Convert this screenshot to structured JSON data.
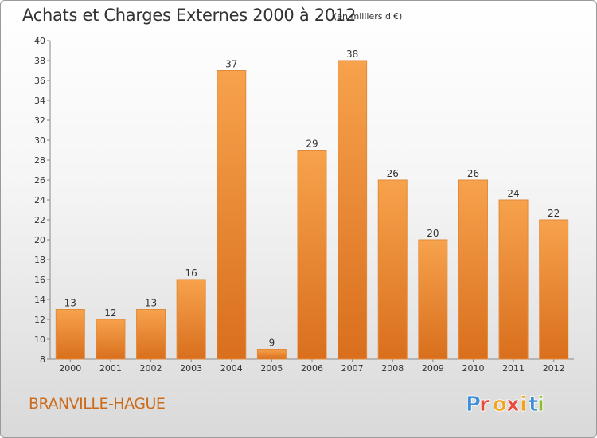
{
  "header": {
    "title": "Achats et Charges Externes 2000 à 2012",
    "subtitle": "(en milliers d'€)"
  },
  "footer": {
    "commune": "BRANVILLE-HAGUE",
    "brand": "Proxiti"
  },
  "colors": {
    "bar_top": "#f7a24c",
    "bar_bottom": "#d96f1d",
    "commune_text": "#cc6a1a",
    "logo_letters": [
      "#3f8fd6",
      "#e84b3c",
      "#f2a21b",
      "#e84b3c",
      "#f2a21b",
      "#3f8fd6",
      "#8dbb2c"
    ]
  },
  "chart_data": {
    "type": "bar",
    "categories": [
      "2000",
      "2001",
      "2002",
      "2003",
      "2004",
      "2005",
      "2006",
      "2007",
      "2008",
      "2009",
      "2010",
      "2011",
      "2012"
    ],
    "values": [
      13,
      12,
      13,
      16,
      37,
      9,
      29,
      38,
      26,
      20,
      26,
      24,
      22
    ],
    "ylim": [
      8,
      40
    ],
    "yticks": [
      8,
      10,
      12,
      14,
      16,
      18,
      20,
      22,
      24,
      26,
      28,
      30,
      32,
      34,
      36,
      38,
      40
    ],
    "grid": false,
    "data_labels": true
  }
}
